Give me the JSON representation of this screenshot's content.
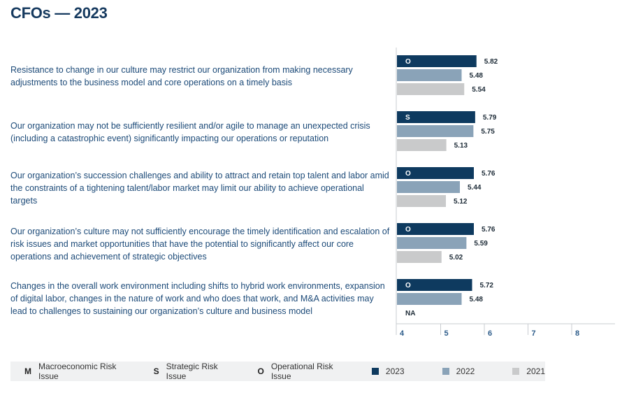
{
  "title": "CFOs — 2023",
  "chart_data": {
    "type": "bar",
    "orientation": "horizontal",
    "xlim": [
      4,
      9
    ],
    "xticks": [
      "4",
      "5",
      "6",
      "7",
      "8"
    ],
    "series_names": [
      "2023",
      "2022",
      "2021"
    ],
    "colors": {
      "2023": "#0e3a5f",
      "2022": "#8aa3b8",
      "2021": "#c9cacb"
    },
    "items": [
      {
        "label": "Resistance to change in our culture may restrict our organization from making necessary adjustments to the business model and core operations on a timely basis",
        "type_code": "O",
        "values": [
          5.82,
          5.48,
          5.54
        ],
        "value_labels": [
          "5.82",
          "5.48",
          "5.54"
        ]
      },
      {
        "label": "Our organization may not be sufficiently resilient and/or agile to manage an unexpected crisis (including a catastrophic event) significantly impacting our operations or reputation",
        "type_code": "S",
        "values": [
          5.79,
          5.75,
          5.13
        ],
        "value_labels": [
          "5.79",
          "5.75",
          "5.13"
        ]
      },
      {
        "label": "Our organization’s succession challenges and ability to attract and retain top talent and labor amid the constraints of a tightening talent/labor market may limit our ability to achieve operational targets",
        "type_code": "O",
        "values": [
          5.76,
          5.44,
          5.12
        ],
        "value_labels": [
          "5.76",
          "5.44",
          "5.12"
        ]
      },
      {
        "label": "Our organization’s culture may not sufficiently encourage the timely identification and escalation of risk issues and market opportunities that have the potential to significantly affect our core operations and achievement of strategic objectives",
        "type_code": "O",
        "values": [
          5.76,
          5.59,
          5.02
        ],
        "value_labels": [
          "5.76",
          "5.59",
          "5.02"
        ]
      },
      {
        "label": "Changes in the overall work environment including shifts to hybrid work environments, expansion of digital labor, changes in the nature of work and who does that work, and M&A activities may lead to challenges to sustaining our organization’s culture and business model",
        "type_code": "O",
        "values": [
          5.72,
          5.48,
          null
        ],
        "value_labels": [
          "5.72",
          "5.48",
          "NA"
        ]
      }
    ]
  },
  "legend": {
    "types": [
      {
        "key": "M",
        "label": "Macroeconomic Risk Issue"
      },
      {
        "key": "S",
        "label": "Strategic Risk Issue"
      },
      {
        "key": "O",
        "label": "Operational Risk Issue"
      }
    ],
    "years": [
      {
        "label": "2023",
        "color": "#0e3a5f"
      },
      {
        "label": "2022",
        "color": "#8aa3b8"
      },
      {
        "label": "2021",
        "color": "#c9cacb"
      }
    ]
  }
}
